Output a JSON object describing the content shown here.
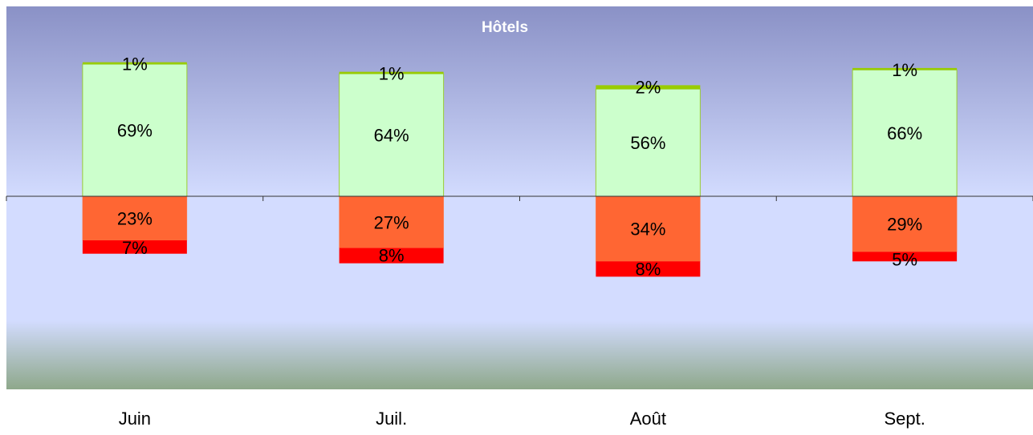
{
  "chart_data": {
    "type": "bar",
    "stacked": true,
    "diverging": true,
    "title": "Hôtels",
    "xlabel": "",
    "ylabel": "",
    "grid": false,
    "legend": "none",
    "ylim": [
      -60,
      100
    ],
    "categories": [
      "Juin",
      "Juil.",
      "Août",
      "Sept."
    ],
    "series": [
      {
        "side": "positive",
        "color": "#CCFFCC",
        "values": [
          69,
          64,
          56,
          66
        ],
        "labels": [
          "69%",
          "64%",
          "56%",
          "66%"
        ]
      },
      {
        "side": "positive",
        "color": "#99CC00",
        "values": [
          1,
          1,
          2,
          1
        ],
        "labels": [
          "1%",
          "1%",
          "2%",
          "1%"
        ]
      },
      {
        "side": "negative",
        "color": "#FF6633",
        "values": [
          23,
          27,
          34,
          29
        ],
        "labels": [
          "23%",
          "27%",
          "34%",
          "29%"
        ]
      },
      {
        "side": "negative",
        "color": "#FF0000",
        "values": [
          7,
          8,
          8,
          5
        ],
        "labels": [
          "7%",
          "8%",
          "8%",
          "5%"
        ]
      }
    ]
  },
  "colors": {
    "plot_top": "#8A91C6",
    "plot_mid": "#D3DCFF",
    "plot_bottom": "#8EA88B",
    "title_text": "#FFFFFF",
    "axis_line": "#333333"
  }
}
